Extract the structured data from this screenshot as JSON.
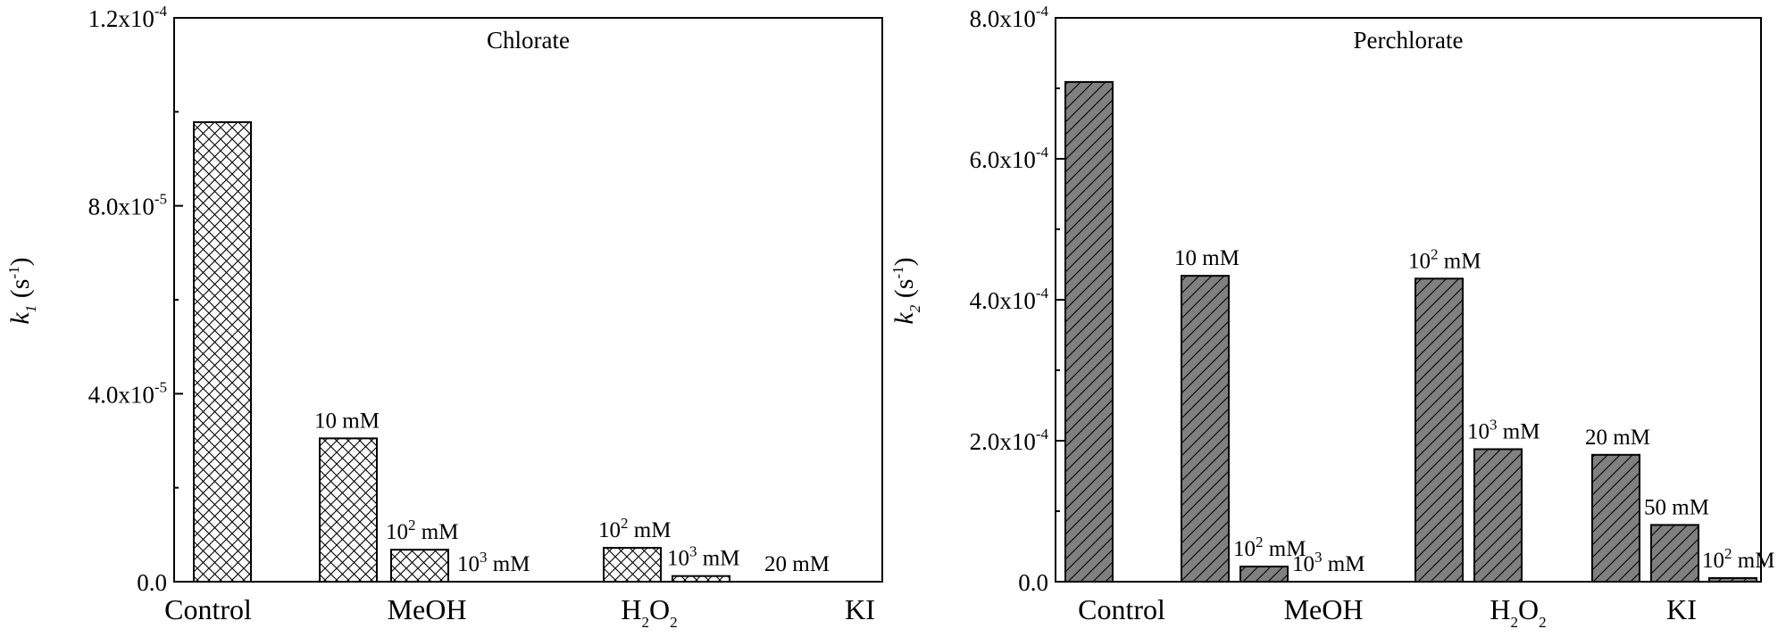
{
  "chart_data": [
    {
      "type": "bar",
      "title": "Chlorate",
      "ylabel_symbol": "k",
      "ylabel_sub": "1",
      "ylabel_unit": " (s",
      "ylabel_unit_exp": "-1",
      "ylabel_close": ")",
      "ylim": [
        0,
        0.00012
      ],
      "yticks": [
        {
          "value": 0,
          "mant": "0.0",
          "exp": ""
        },
        {
          "value": 4e-05,
          "mant": "4.0x10",
          "exp": "-5"
        },
        {
          "value": 8e-05,
          "mant": "8.0x10",
          "exp": "-5"
        },
        {
          "value": 0.00012,
          "mant": "1.2x10",
          "exp": "-4"
        }
      ],
      "minor_ticks": [
        2e-05,
        6e-05,
        0.0001
      ],
      "pattern": "crosshatch",
      "bar_color": "#ffffff",
      "groups": [
        {
          "label": "Control",
          "label_sub": "",
          "label_tail": ""
        },
        {
          "label": "MeOH",
          "label_sub": "",
          "label_tail": ""
        },
        {
          "label": "H",
          "label_sub": "2",
          "label_tail": "O",
          "label_sub2": "2"
        },
        {
          "label": "KI",
          "label_sub": "",
          "label_tail": ""
        }
      ],
      "bars": [
        {
          "group": 0,
          "value": 9.78e-05,
          "label_pre": "",
          "label_exp": "",
          "label_post": ""
        },
        {
          "group": 1,
          "value": 3.05e-05,
          "label_pre": "10 mM",
          "label_exp": "",
          "label_post": ""
        },
        {
          "group": 1,
          "value": 6.8e-06,
          "label_pre": "10",
          "label_exp": "2",
          "label_post": " mM"
        },
        {
          "group": 1,
          "value": 0.0,
          "label_pre": "10",
          "label_exp": "3",
          "label_post": " mM"
        },
        {
          "group": 2,
          "value": 7.2e-06,
          "label_pre": "10",
          "label_exp": "2",
          "label_post": " mM"
        },
        {
          "group": 2,
          "value": 1.2e-06,
          "label_pre": "10",
          "label_exp": "3",
          "label_post": " mM"
        },
        {
          "group": 3,
          "value": 0.0,
          "label_pre": "20 mM",
          "label_exp": "",
          "label_post": ""
        }
      ]
    },
    {
      "type": "bar",
      "title": "Perchlorate",
      "ylabel_symbol": "k",
      "ylabel_sub": "2",
      "ylabel_unit": " (s",
      "ylabel_unit_exp": "-1",
      "ylabel_close": ")",
      "ylim": [
        0,
        0.0008
      ],
      "yticks": [
        {
          "value": 0,
          "mant": "0.0",
          "exp": ""
        },
        {
          "value": 0.0002,
          "mant": "2.0x10",
          "exp": "-4"
        },
        {
          "value": 0.0004,
          "mant": "4.0x10",
          "exp": "-4"
        },
        {
          "value": 0.0006,
          "mant": "6.0x10",
          "exp": "-4"
        },
        {
          "value": 0.0008,
          "mant": "8.0x10",
          "exp": "-4"
        }
      ],
      "minor_ticks": [
        0.0001,
        0.0003,
        0.0005,
        0.0007
      ],
      "pattern": "diagonal",
      "bar_color": "#808080",
      "groups": [
        {
          "label": "Control",
          "label_sub": "",
          "label_tail": ""
        },
        {
          "label": "MeOH",
          "label_sub": "",
          "label_tail": ""
        },
        {
          "label": "H",
          "label_sub": "2",
          "label_tail": "O",
          "label_sub2": "2"
        },
        {
          "label": "KI",
          "label_sub": "",
          "label_tail": ""
        }
      ],
      "bars": [
        {
          "group": 0,
          "value": 0.000709,
          "label_pre": "",
          "label_exp": "",
          "label_post": ""
        },
        {
          "group": 1,
          "value": 0.000434,
          "label_pre": "10 mM",
          "label_exp": "",
          "label_post": ""
        },
        {
          "group": 1,
          "value": 2.15e-05,
          "label_pre": "10",
          "label_exp": "2",
          "label_post": " mM"
        },
        {
          "group": 1,
          "value": 0.0,
          "label_pre": "10",
          "label_exp": "3",
          "label_post": " mM"
        },
        {
          "group": 2,
          "value": 0.00043,
          "label_pre": "10",
          "label_exp": "2",
          "label_post": " mM"
        },
        {
          "group": 2,
          "value": 0.000188,
          "label_pre": "10",
          "label_exp": "3",
          "label_post": " mM"
        },
        {
          "group": 3,
          "value": 0.00018,
          "label_pre": "20 mM",
          "label_exp": "",
          "label_post": ""
        },
        {
          "group": 3,
          "value": 8.05e-05,
          "label_pre": "50 mM",
          "label_exp": "",
          "label_post": ""
        },
        {
          "group": 3,
          "value": 5.2e-06,
          "label_pre": "10",
          "label_exp": "2",
          "label_post": " mM"
        }
      ]
    }
  ]
}
